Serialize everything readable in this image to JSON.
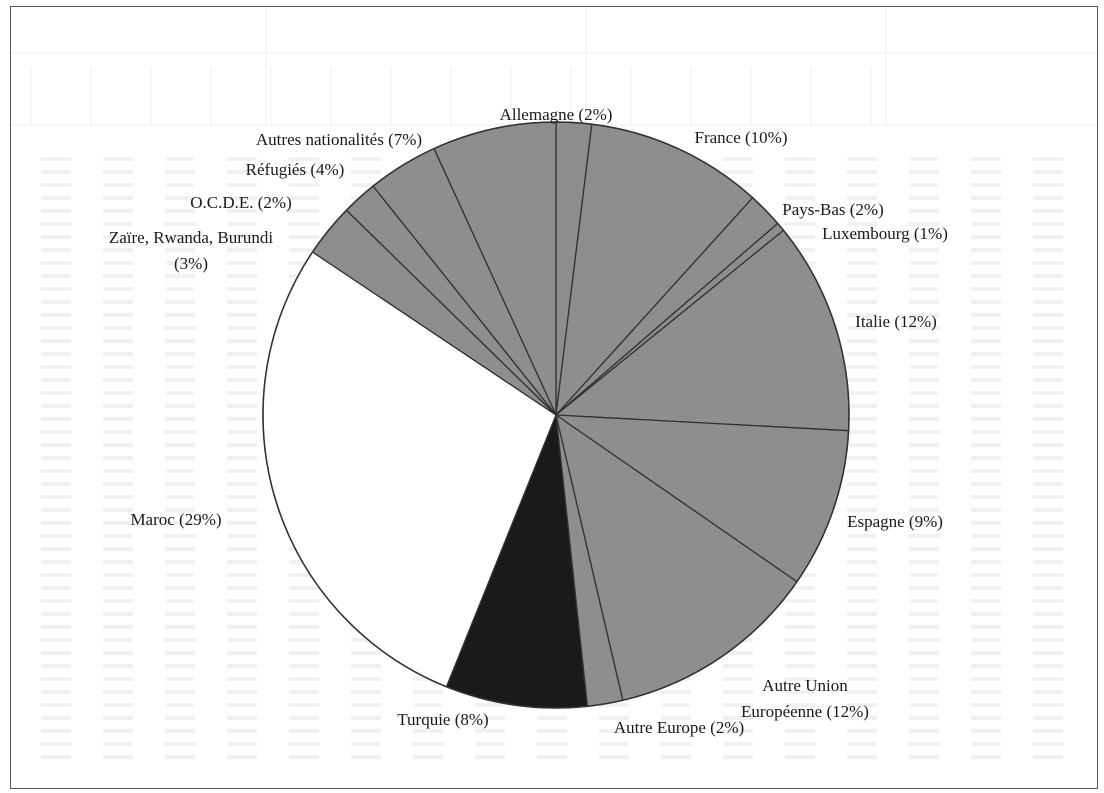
{
  "chart_data": {
    "type": "pie",
    "slices": [
      {
        "label": "Allemagne (2%)",
        "value": 2,
        "color": "#8e8e8e"
      },
      {
        "label": "France (10%)",
        "value": 10,
        "color": "#8e8e8e"
      },
      {
        "label": "Pays-Bas (2%)",
        "value": 2,
        "color": "#8e8e8e"
      },
      {
        "label": "Luxembourg (1%)",
        "value": 0.5,
        "color": "#8e8e8e"
      },
      {
        "label": "Italie (12%)",
        "value": 12,
        "color": "#8e8e8e"
      },
      {
        "label": "Espagne (9%)",
        "value": 9,
        "color": "#8e8e8e"
      },
      {
        "label": "Autre Union Européenne (12%)",
        "label_lines": [
          "Autre Union",
          "Européenne (12%)"
        ],
        "value": 12,
        "color": "#8e8e8e"
      },
      {
        "label": "Autre Europe (2%)",
        "value": 2,
        "color": "#8e8e8e"
      },
      {
        "label": "Turquie (8%)",
        "value": 8,
        "color": "#1a1a1a"
      },
      {
        "label": "Maroc (29%)",
        "value": 29,
        "color": "#ffffff"
      },
      {
        "label": "Zaïre, Rwanda, Burundi (3%)",
        "label_lines": [
          "Zaïre, Rwanda, Burundi",
          "(3%)"
        ],
        "value": 3,
        "color": "#8e8e8e"
      },
      {
        "label": "O.C.D.E. (2%)",
        "value": 2,
        "color": "#8e8e8e"
      },
      {
        "label": "Réfugiés (4%)",
        "value": 4,
        "color": "#8e8e8e"
      },
      {
        "label": "Autres nationalités (7%)",
        "value": 7,
        "color": "#8e8e8e"
      }
    ],
    "start_angle_deg": 0,
    "direction": "clockwise",
    "stroke_color": "#333333",
    "background_color": "#ffffff"
  }
}
